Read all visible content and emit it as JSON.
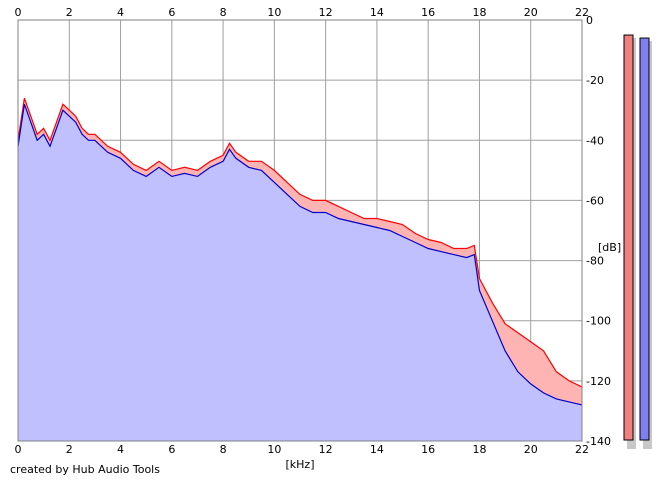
{
  "chart_data": {
    "type": "area",
    "xlabel": "[kHz]",
    "ylabel": "[dB]",
    "xlim": [
      0,
      22
    ],
    "ylim": [
      -140,
      0
    ],
    "x_ticks": [
      0,
      2,
      4,
      6,
      8,
      10,
      12,
      14,
      16,
      18,
      20,
      22
    ],
    "y_ticks": [
      0,
      -20,
      -40,
      -60,
      -80,
      -100,
      -120,
      -140
    ],
    "grid": true,
    "x_axis_labels_top_and_bottom": true,
    "y_axis_side": "right",
    "series": [
      {
        "color": "#ff0000",
        "fill_color": "#ffb4b4",
        "x": [
          0,
          0.25,
          0.5,
          0.75,
          1,
          1.25,
          1.5,
          1.75,
          2,
          2.25,
          2.5,
          2.75,
          3,
          3.5,
          4,
          4.5,
          5,
          5.5,
          6,
          6.5,
          7,
          7.5,
          8,
          8.25,
          8.5,
          9,
          9.5,
          10,
          10.5,
          11,
          11.5,
          12,
          12.5,
          13,
          13.5,
          14,
          14.5,
          15,
          15.5,
          16,
          16.5,
          17,
          17.5,
          17.8,
          18,
          18.5,
          19,
          19.5,
          20,
          20.5,
          21,
          21.5,
          22
        ],
        "values": [
          -40,
          -26,
          -32,
          -38,
          -36,
          -40,
          -34,
          -28,
          -30,
          -32,
          -36,
          -38,
          -38,
          -42,
          -44,
          -48,
          -50,
          -47,
          -50,
          -49,
          -50,
          -47,
          -45,
          -41,
          -44,
          -47,
          -47,
          -50,
          -54,
          -58,
          -60,
          -60,
          -62,
          -64,
          -66,
          -66,
          -67,
          -68,
          -71,
          -73,
          -74,
          -76,
          -76,
          -75,
          -86,
          -94,
          -101,
          -104,
          -107,
          -110,
          -117,
          -120,
          -122
        ]
      },
      {
        "color": "#0000cc",
        "fill_color": "#c0c0ff",
        "x": [
          0,
          0.25,
          0.5,
          0.75,
          1,
          1.25,
          1.5,
          1.75,
          2,
          2.25,
          2.5,
          2.75,
          3,
          3.5,
          4,
          4.5,
          5,
          5.5,
          6,
          6.5,
          7,
          7.5,
          8,
          8.25,
          8.5,
          9,
          9.5,
          10,
          10.5,
          11,
          11.5,
          12,
          12.5,
          13,
          13.5,
          14,
          14.5,
          15,
          15.5,
          16,
          16.5,
          17,
          17.5,
          17.8,
          18,
          18.5,
          19,
          19.5,
          20,
          20.5,
          21,
          21.5,
          22
        ],
        "values": [
          -42,
          -28,
          -34,
          -40,
          -38,
          -42,
          -36,
          -30,
          -32,
          -34,
          -38,
          -40,
          -40,
          -44,
          -46,
          -50,
          -52,
          -49,
          -52,
          -51,
          -52,
          -49,
          -47,
          -43,
          -46,
          -49,
          -50,
          -54,
          -58,
          -62,
          -64,
          -64,
          -66,
          -67,
          -68,
          -69,
          -70,
          -72,
          -74,
          -76,
          -77,
          -78,
          -79,
          -78,
          -90,
          -100,
          -110,
          -117,
          -121,
          -124,
          -126,
          -127,
          -128
        ]
      }
    ],
    "level_meters": [
      {
        "color": "#f08080",
        "level_db": -5
      },
      {
        "color": "#8080f0",
        "level_db": -6
      }
    ]
  },
  "footer": {
    "credit": "created by Hub Audio Tools"
  }
}
